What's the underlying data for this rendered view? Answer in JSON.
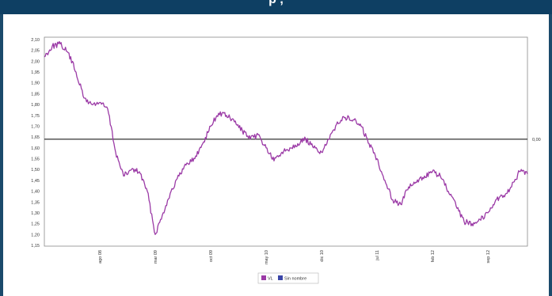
{
  "header": {
    "title": "p , "
  },
  "colors": {
    "banner": "#0e3f63",
    "series_vl": "#9b3aa6",
    "series_sin_nombre": "#3b46a8",
    "reference_line": "#333333"
  },
  "chart_data": {
    "type": "line",
    "title": "",
    "xlabel": "",
    "ylabel": "",
    "ylim": [
      1.15,
      2.1
    ],
    "y_ticks": [
      "2,10",
      "2,05",
      "2,00",
      "1,95",
      "1,90",
      "1,85",
      "1,80",
      "1,75",
      "1,70",
      "1,65",
      "1,60",
      "1,55",
      "1,50",
      "1,45",
      "1,40",
      "1,35",
      "1,30",
      "1,25",
      "1,20",
      "1,15"
    ],
    "x_ticks": [
      "ago 08",
      "mar 09",
      "oct 09",
      "may 10",
      "dic 10",
      "jul 11",
      "feb 12",
      "sep 12"
    ],
    "x_range": [
      "2008-01",
      "2013-02"
    ],
    "grid": false,
    "legend_position": "bottom-center",
    "reference_line": {
      "value": 1.64,
      "label": "0,00"
    },
    "series": [
      {
        "name": "VL",
        "color": "#9b3aa6",
        "points": [
          [
            "2008-01",
            2.02
          ],
          [
            "2008-02",
            2.07
          ],
          [
            "2008-03",
            2.08
          ],
          [
            "2008-04",
            2.04
          ],
          [
            "2008-05",
            1.95
          ],
          [
            "2008-06",
            1.83
          ],
          [
            "2008-07",
            1.8
          ],
          [
            "2008-08",
            1.81
          ],
          [
            "2008-09",
            1.78
          ],
          [
            "2008-10",
            1.58
          ],
          [
            "2008-11",
            1.47
          ],
          [
            "2008-12",
            1.5
          ],
          [
            "2009-01",
            1.49
          ],
          [
            "2009-02",
            1.4
          ],
          [
            "2009-03",
            1.2
          ],
          [
            "2009-04",
            1.3
          ],
          [
            "2009-05",
            1.4
          ],
          [
            "2009-06",
            1.47
          ],
          [
            "2009-07",
            1.53
          ],
          [
            "2009-08",
            1.55
          ],
          [
            "2009-09",
            1.62
          ],
          [
            "2009-10",
            1.7
          ],
          [
            "2009-11",
            1.76
          ],
          [
            "2009-12",
            1.75
          ],
          [
            "2010-01",
            1.72
          ],
          [
            "2010-02",
            1.68
          ],
          [
            "2010-03",
            1.64
          ],
          [
            "2010-04",
            1.66
          ],
          [
            "2010-05",
            1.6
          ],
          [
            "2010-06",
            1.54
          ],
          [
            "2010-07",
            1.58
          ],
          [
            "2010-08",
            1.6
          ],
          [
            "2010-09",
            1.62
          ],
          [
            "2010-10",
            1.64
          ],
          [
            "2010-11",
            1.6
          ],
          [
            "2010-12",
            1.58
          ],
          [
            "2011-01",
            1.64
          ],
          [
            "2011-02",
            1.72
          ],
          [
            "2011-03",
            1.74
          ],
          [
            "2011-04",
            1.73
          ],
          [
            "2011-05",
            1.7
          ],
          [
            "2011-06",
            1.62
          ],
          [
            "2011-07",
            1.55
          ],
          [
            "2011-08",
            1.45
          ],
          [
            "2011-09",
            1.36
          ],
          [
            "2011-10",
            1.34
          ],
          [
            "2011-11",
            1.42
          ],
          [
            "2011-12",
            1.44
          ],
          [
            "2012-01",
            1.47
          ],
          [
            "2012-02",
            1.49
          ],
          [
            "2012-03",
            1.47
          ],
          [
            "2012-04",
            1.4
          ],
          [
            "2012-05",
            1.33
          ],
          [
            "2012-06",
            1.26
          ],
          [
            "2012-07",
            1.25
          ],
          [
            "2012-08",
            1.27
          ],
          [
            "2012-09",
            1.3
          ],
          [
            "2012-10",
            1.36
          ],
          [
            "2012-11",
            1.38
          ],
          [
            "2012-12",
            1.42
          ],
          [
            "2013-01",
            1.49
          ],
          [
            "2013-02",
            1.48
          ]
        ]
      },
      {
        "name": "Sin nombre",
        "color": "#3b46a8",
        "points": []
      }
    ]
  }
}
